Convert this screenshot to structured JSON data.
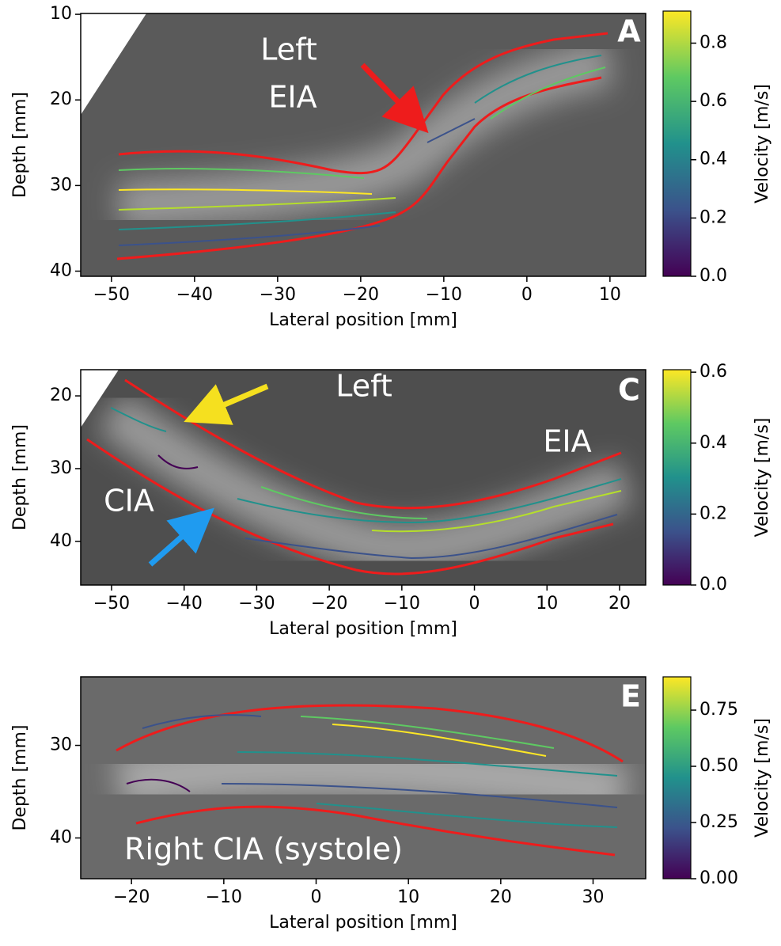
{
  "chart_data": [
    {
      "type": "streamline",
      "panel_label": "A",
      "annotations": [
        "Left",
        "EIA"
      ],
      "xlabel": "Lateral position [mm]",
      "ylabel": "Depth [mm]",
      "y_inverted": true,
      "xlim": [
        -53.7,
        14.3
      ],
      "ylim": [
        9.9,
        40.6
      ],
      "xticks": [
        {
          "value": -50,
          "label": "−50"
        },
        {
          "value": -40,
          "label": "−40"
        },
        {
          "value": -30,
          "label": "−30"
        },
        {
          "value": -20,
          "label": "−20"
        },
        {
          "value": -10,
          "label": "−10"
        },
        0,
        10
      ],
      "yticks": [
        10,
        20,
        30,
        40
      ],
      "colorbar": {
        "label": "Velocity [m/s]",
        "lim": [
          0,
          0.91
        ],
        "ticks": [
          {
            "value": 0,
            "label": "0.0"
          },
          0.2,
          0.4,
          0.6,
          0.8
        ]
      }
    },
    {
      "type": "streamline",
      "panel_label": "C",
      "annotations": [
        "Left",
        "EIA",
        "CIA"
      ],
      "xlabel": "Lateral position [mm]",
      "ylabel": "Depth [mm]",
      "y_inverted": true,
      "xlim": [
        -54.25,
        23.6
      ],
      "ylim": [
        16.4,
        46.0
      ],
      "xticks": [
        {
          "value": -50,
          "label": "−50"
        },
        {
          "value": -40,
          "label": "−40"
        },
        {
          "value": -30,
          "label": "−30"
        },
        {
          "value": -20,
          "label": "−20"
        },
        {
          "value": -10,
          "label": "−10"
        },
        0,
        10,
        20
      ],
      "yticks": [
        20,
        30,
        40
      ],
      "colorbar": {
        "label": "Velocity [m/s]",
        "lim": [
          0,
          0.607
        ],
        "ticks": [
          {
            "value": 0,
            "label": "0.0"
          },
          0.2,
          0.4,
          0.6
        ]
      }
    },
    {
      "type": "streamline",
      "panel_label": "E",
      "annotations": [
        "Right CIA (systole)"
      ],
      "xlabel": "Lateral position [mm]",
      "ylabel": "Depth [mm]",
      "y_inverted": true,
      "xlim": [
        -25.5,
        35.7
      ],
      "ylim": [
        22.6,
        44.4
      ],
      "xticks": [
        {
          "value": -20,
          "label": "−20"
        },
        {
          "value": -10,
          "label": "−10"
        },
        0,
        10,
        20,
        30
      ],
      "yticks": [
        30,
        40
      ],
      "colorbar": {
        "label": "Velocity [m/s]",
        "lim": [
          0,
          0.898
        ],
        "ticks": [
          {
            "value": 0,
            "label": "0.00"
          },
          0.25,
          {
            "value": 0.5,
            "label": "0.50"
          },
          0.75
        ]
      }
    }
  ]
}
